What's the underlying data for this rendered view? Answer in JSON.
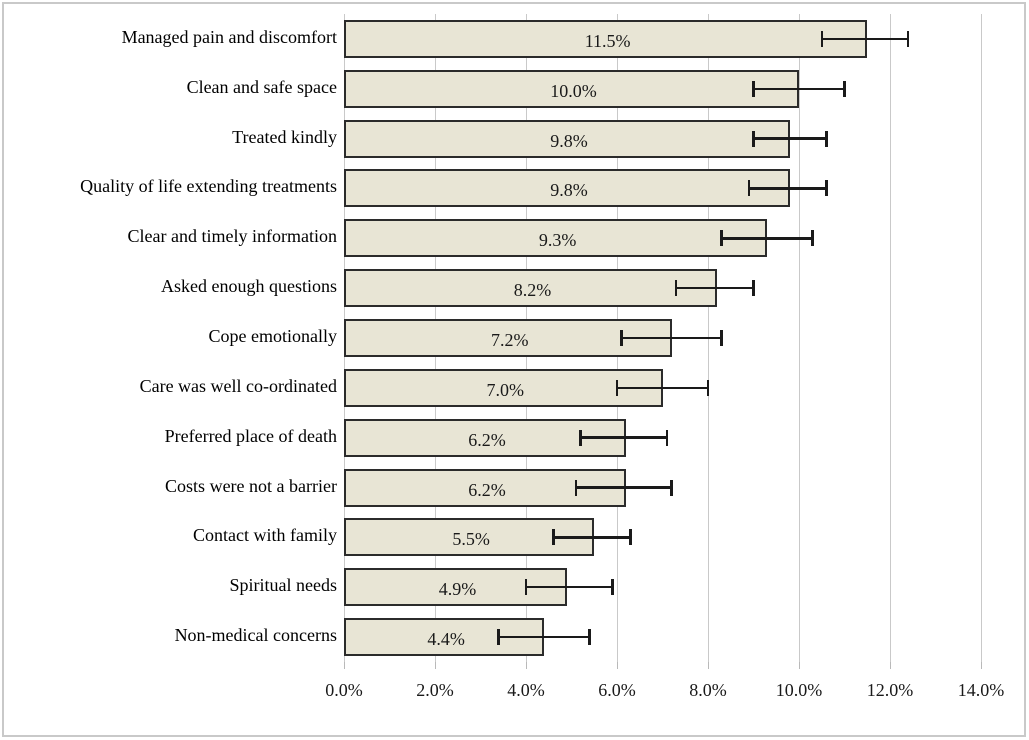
{
  "chart_data": {
    "type": "bar",
    "orientation": "horizontal",
    "title": "",
    "xlabel": "",
    "ylabel": "",
    "categories": [
      "Managed pain and discomfort",
      "Clean and safe space",
      "Treated kindly",
      "Quality of life extending treatments",
      "Clear and timely information",
      "Asked enough questions",
      "Cope emotionally",
      "Care was well co-ordinated",
      "Preferred place of death",
      "Costs were not a barrier",
      "Contact with family",
      "Spiritual needs",
      "Non-medical concerns"
    ],
    "values": [
      11.5,
      10.0,
      9.8,
      9.8,
      9.3,
      8.2,
      7.2,
      7.0,
      6.2,
      6.2,
      5.5,
      4.9,
      4.4
    ],
    "value_labels": [
      "11.5%",
      "10.0%",
      "9.8%",
      "9.8%",
      "9.3%",
      "8.2%",
      "7.2%",
      "7.0%",
      "6.2%",
      "6.2%",
      "5.5%",
      "4.9%",
      "4.4%"
    ],
    "error_low": [
      10.5,
      9.0,
      9.0,
      8.9,
      8.3,
      7.3,
      6.1,
      6.0,
      5.2,
      5.1,
      4.6,
      4.0,
      3.4
    ],
    "error_high": [
      12.4,
      11.0,
      10.6,
      10.6,
      10.3,
      9.0,
      8.3,
      8.0,
      7.1,
      7.2,
      6.3,
      5.9,
      5.4
    ],
    "xlim": [
      0,
      14
    ],
    "x_tick_step": 2,
    "x_tick_labels": [
      "0.0%",
      "2.0%",
      "4.0%",
      "6.0%",
      "8.0%",
      "10.0%",
      "12.0%",
      "14.0%"
    ],
    "grid": "vertical",
    "legend": "none",
    "colors": {
      "bar_fill": "#e8e5d5",
      "bar_border": "#2b2b2b",
      "error_bar": "#1a1a1a",
      "gridline": "#c9c9c9",
      "frame_border": "#c9c9c9",
      "background": "#ffffff"
    }
  }
}
